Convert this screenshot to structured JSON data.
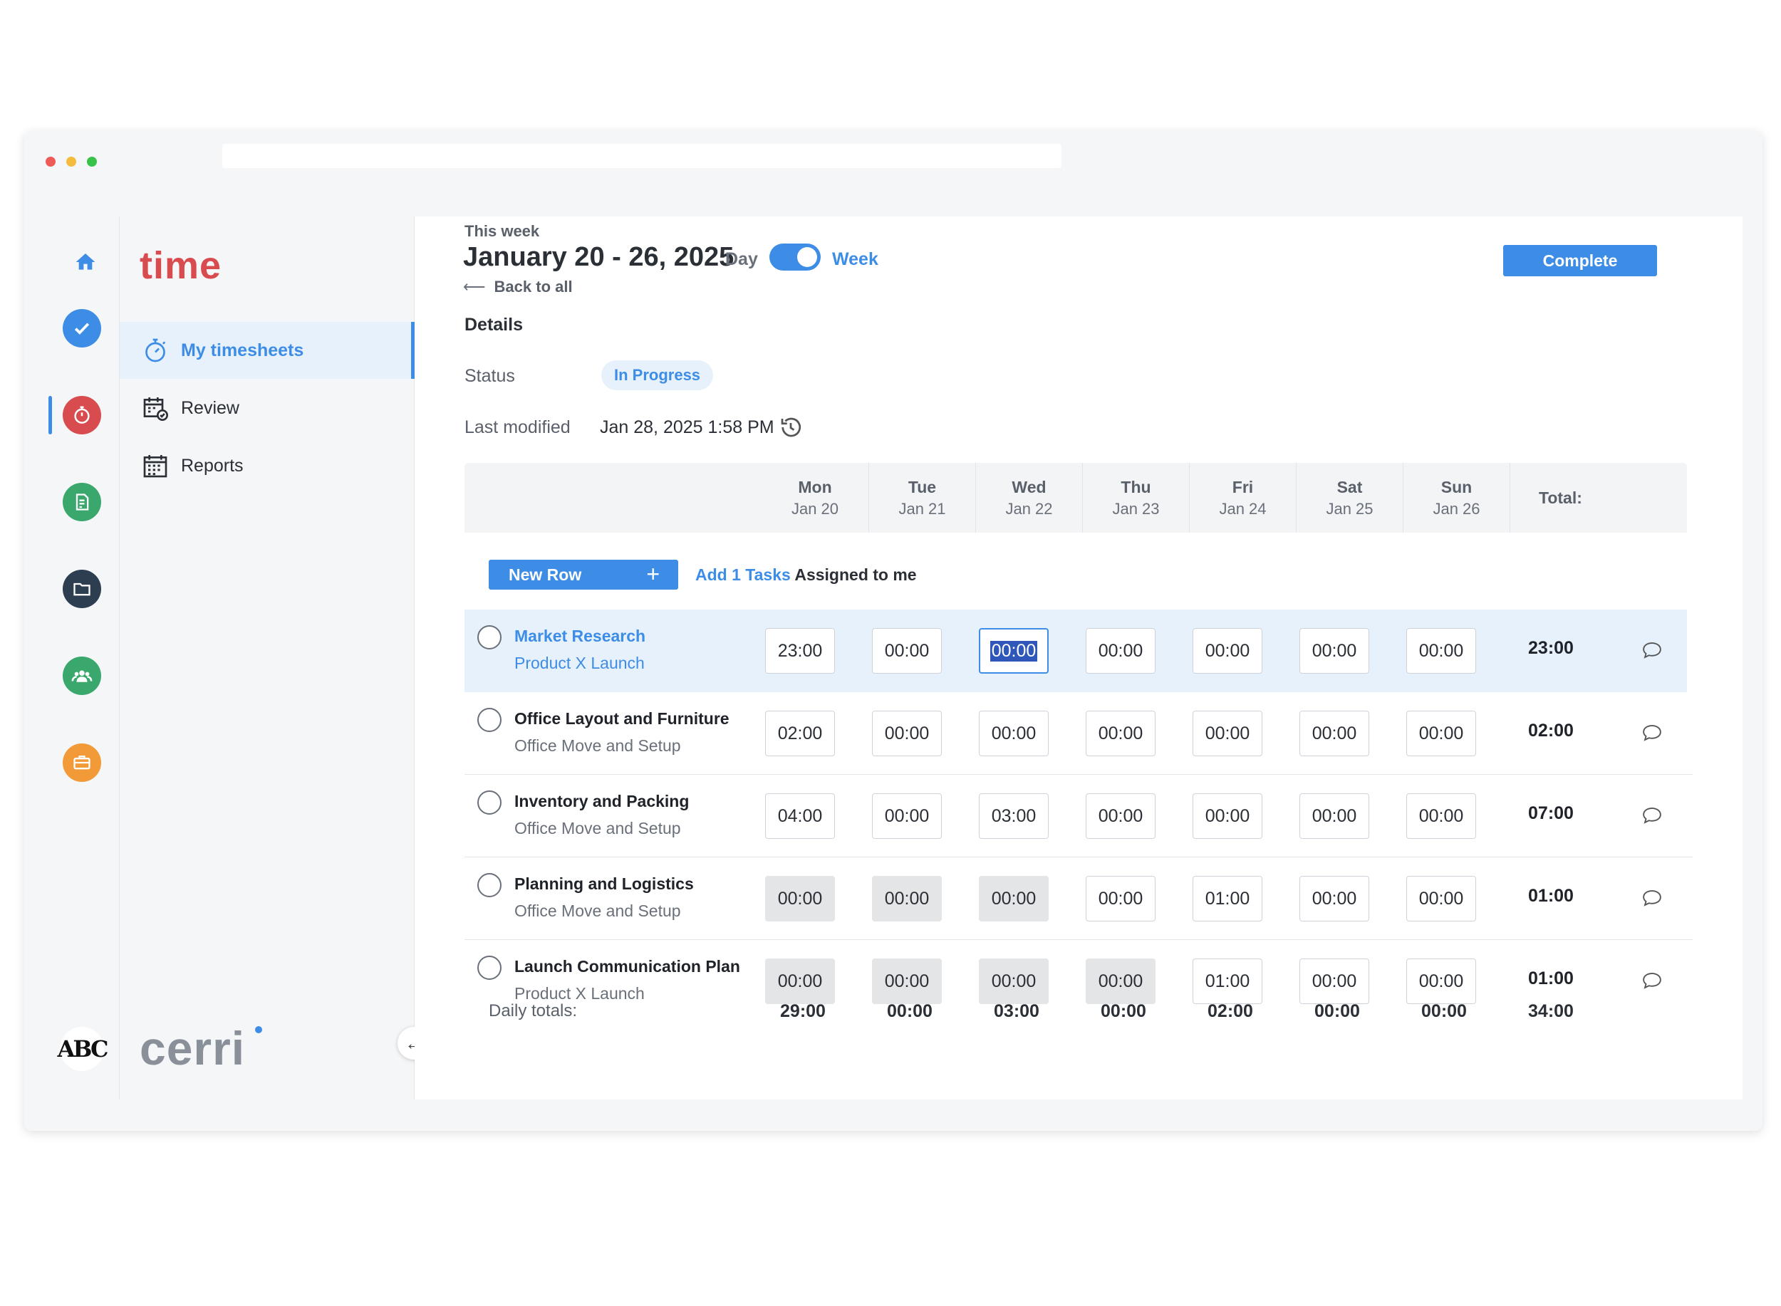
{
  "app": {
    "brand": "time",
    "footer_brand": "cerri",
    "avatar_text": "ABC"
  },
  "sidebar": {
    "items": [
      {
        "label": "My timesheets",
        "icon": "stopwatch-icon",
        "active": true
      },
      {
        "label": "Review",
        "icon": "calendar-check-icon",
        "active": false
      },
      {
        "label": "Reports",
        "icon": "calendar-grid-icon",
        "active": false
      }
    ]
  },
  "rail": {
    "icons": [
      {
        "icon": "home-icon",
        "color": "#3d8de6"
      },
      {
        "icon": "check-icon",
        "color": "#3d8de6"
      },
      {
        "icon": "timer-icon",
        "color": "#d84b4e"
      },
      {
        "icon": "document-icon",
        "color": "#3aa76d"
      },
      {
        "icon": "folder-icon",
        "color": "#2c3e50"
      },
      {
        "icon": "team-icon",
        "color": "#3aa76d"
      },
      {
        "icon": "briefcase-icon",
        "color": "#f29a38"
      }
    ]
  },
  "header": {
    "eyebrow": "This week",
    "title": "January 20 - 26, 2025",
    "day_label": "Day",
    "week_label": "Week",
    "back_label": "Back to all",
    "complete_label": "Complete"
  },
  "details": {
    "heading": "Details",
    "status_label": "Status",
    "status_value": "In Progress",
    "modified_label": "Last modified",
    "modified_value": "Jan 28, 2025 1:58 PM"
  },
  "table": {
    "days": [
      {
        "day": "Mon",
        "date": "Jan 20"
      },
      {
        "day": "Tue",
        "date": "Jan 21"
      },
      {
        "day": "Wed",
        "date": "Jan 22"
      },
      {
        "day": "Thu",
        "date": "Jan 23"
      },
      {
        "day": "Fri",
        "date": "Jan 24"
      },
      {
        "day": "Sat",
        "date": "Jan 25"
      },
      {
        "day": "Sun",
        "date": "Jan 26"
      }
    ],
    "total_header": "Total:",
    "new_row_label": "New Row",
    "add_tasks_link": "Add 1 Tasks",
    "add_tasks_suffix": "Assigned to me",
    "rows": [
      {
        "task": "Market Research",
        "project": "Product X Launch",
        "selected": true,
        "hours": [
          "23:00",
          "00:00",
          "00:00",
          "00:00",
          "00:00",
          "00:00",
          "00:00"
        ],
        "locked": [
          false,
          false,
          false,
          false,
          false,
          false,
          false
        ],
        "total": "23:00"
      },
      {
        "task": "Office Layout and Furniture",
        "project": "Office Move and Setup",
        "selected": false,
        "hours": [
          "02:00",
          "00:00",
          "00:00",
          "00:00",
          "00:00",
          "00:00",
          "00:00"
        ],
        "locked": [
          false,
          false,
          false,
          false,
          false,
          false,
          false
        ],
        "total": "02:00"
      },
      {
        "task": "Inventory and Packing",
        "project": "Office Move and Setup",
        "selected": false,
        "hours": [
          "04:00",
          "00:00",
          "03:00",
          "00:00",
          "00:00",
          "00:00",
          "00:00"
        ],
        "locked": [
          false,
          false,
          false,
          false,
          false,
          false,
          false
        ],
        "total": "07:00"
      },
      {
        "task": "Planning and Logistics",
        "project": "Office Move and Setup",
        "selected": false,
        "hours": [
          "00:00",
          "00:00",
          "00:00",
          "00:00",
          "01:00",
          "00:00",
          "00:00"
        ],
        "locked": [
          true,
          true,
          true,
          false,
          false,
          false,
          false
        ],
        "total": "01:00"
      },
      {
        "task": "Launch Communication Plan",
        "project": "Product X Launch",
        "selected": false,
        "hours": [
          "00:00",
          "00:00",
          "00:00",
          "00:00",
          "01:00",
          "00:00",
          "00:00"
        ],
        "locked": [
          true,
          true,
          true,
          true,
          false,
          false,
          false
        ],
        "total": "01:00"
      }
    ],
    "daily_totals_label": "Daily totals:",
    "daily_totals": [
      "29:00",
      "00:00",
      "03:00",
      "00:00",
      "02:00",
      "00:00",
      "00:00"
    ],
    "grand_total": "34:00"
  }
}
